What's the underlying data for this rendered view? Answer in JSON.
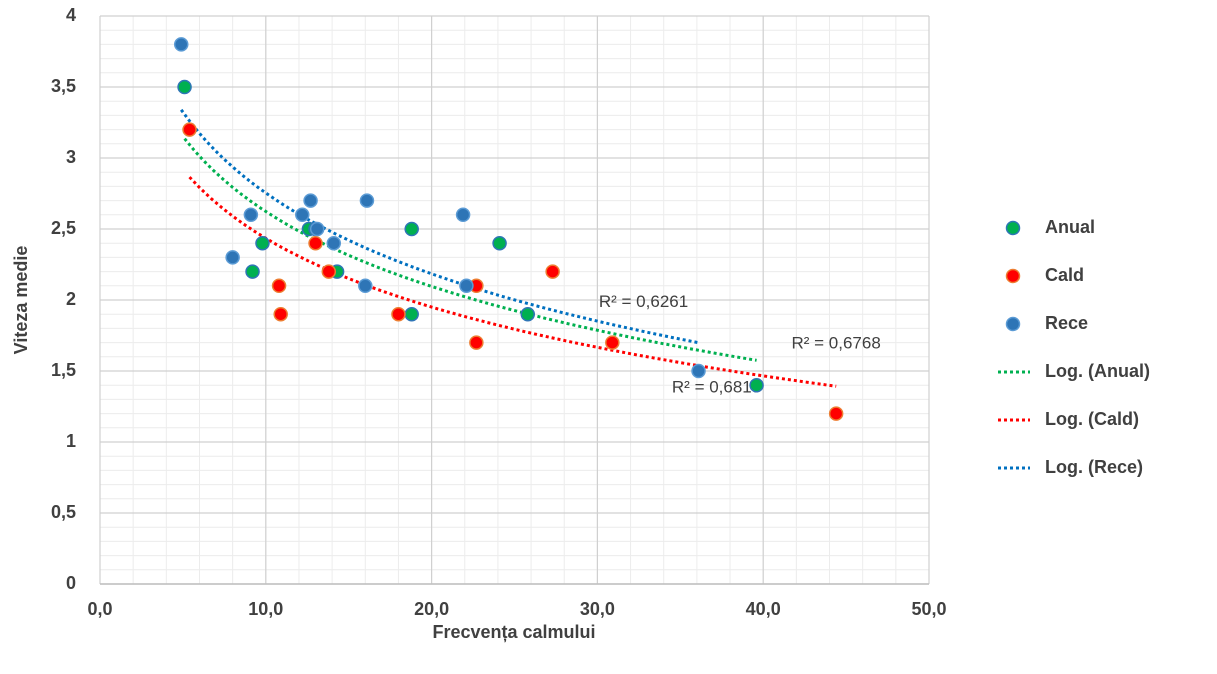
{
  "chart_data": {
    "type": "scatter",
    "x_label": "Frecvența calmului",
    "y_label": "Viteza medie",
    "xlim": [
      0,
      50
    ],
    "ylim": [
      0,
      4
    ],
    "xticks": [
      {
        "value": 0,
        "label": "0,0"
      },
      {
        "value": 10,
        "label": "10,0"
      },
      {
        "value": 20,
        "label": "20,0"
      },
      {
        "value": 30,
        "label": "30,0"
      },
      {
        "value": 40,
        "label": "40,0"
      },
      {
        "value": 50,
        "label": "50,0"
      }
    ],
    "yticks": [
      0,
      {
        "value": 0.5,
        "label": "0,5"
      },
      1,
      {
        "value": 1.5,
        "label": "1,5"
      },
      2,
      {
        "value": 2.5,
        "label": "2,5"
      },
      3,
      {
        "value": 3.5,
        "label": "3,5"
      },
      4
    ],
    "grid": true,
    "minor_grid": {
      "x_step": 2,
      "y_step": 0.1
    },
    "legend": "right",
    "series": [
      {
        "name": "Anual",
        "color": "#00b050",
        "edge_color": "#2e75b6",
        "x": [
          5.1,
          9.2,
          9.8,
          12.6,
          13.0,
          14.3,
          18.8,
          18.8,
          24.1,
          25.8,
          39.6
        ],
        "values": [
          3.5,
          2.2,
          2.4,
          2.5,
          2.5,
          2.2,
          2.5,
          1.9,
          2.4,
          1.9,
          1.4
        ],
        "trendline": {
          "name": "Log. (Anual)",
          "label": "R² = 0,6819",
          "color": "#00b050"
        }
      },
      {
        "name": "Cald",
        "color": "#ff0000",
        "edge_color": "#ed7d31",
        "x": [
          5.4,
          10.8,
          10.9,
          13.0,
          13.8,
          18.0,
          22.7,
          22.7,
          27.3,
          30.9,
          44.4
        ],
        "values": [
          3.2,
          2.1,
          1.9,
          2.4,
          2.2,
          1.9,
          2.1,
          1.7,
          2.2,
          1.7,
          1.2
        ],
        "trendline": {
          "name": "Log. (Cald)",
          "label": "R² = 0,6768",
          "color": "#ff0000"
        }
      },
      {
        "name": "Rece",
        "color": "#2e75b6",
        "edge_color": "#5b9bd5",
        "x": [
          4.9,
          8.0,
          9.1,
          12.2,
          12.7,
          13.1,
          14.1,
          16.0,
          16.1,
          21.9,
          22.1,
          36.1
        ],
        "values": [
          3.8,
          2.3,
          2.6,
          2.6,
          2.7,
          2.5,
          2.4,
          2.1,
          2.7,
          2.6,
          2.1,
          1.5
        ],
        "trendline": {
          "name": "Log. (Rece)",
          "label": "R² = 0,6261",
          "color": "#0070c0"
        }
      }
    ]
  }
}
